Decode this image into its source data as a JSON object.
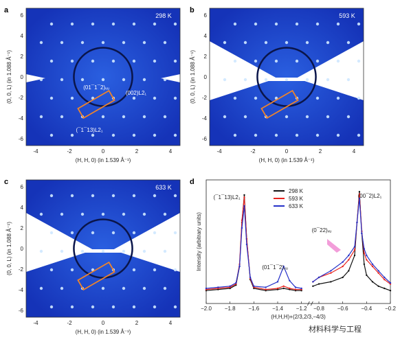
{
  "panels": [
    {
      "letter": "a",
      "temperature": "298 K",
      "xlabel": "(H, H, 0) (in 1.539 Å⁻¹)",
      "ylabel": "(0, 0, L) (in 1.088 Å⁻¹)",
      "xticks": [
        "-4",
        "-2",
        "0",
        "2",
        "4"
      ],
      "yticks": [
        "6",
        "4",
        "2",
        "0",
        "-2",
        "-4",
        "-6"
      ],
      "annotations": [
        "(01¯1¯2)ᵥᵤ",
        "(002)L2₁",
        "(¯1¯13)L2₁"
      ]
    },
    {
      "letter": "b",
      "temperature": "593 K",
      "xlabel": "(H, H, 0) (in 1.539 Å⁻¹)",
      "ylabel": "(0, 0, L) (in 1.088 Å⁻¹)",
      "xticks": [
        "-4",
        "-2",
        "0",
        "2",
        "4"
      ],
      "yticks": [
        "6",
        "4",
        "2",
        "0",
        "-2",
        "-4",
        "-6"
      ]
    },
    {
      "letter": "c",
      "temperature": "633 K",
      "xlabel": "(H, H, 0) (in 1.539 Å⁻¹)",
      "ylabel": "(0, 0, L) (in 1.088 Å⁻¹)",
      "xticks": [
        "-4",
        "-2",
        "0",
        "2",
        "4"
      ],
      "yticks": [
        "6",
        "4",
        "2",
        "0",
        "-2",
        "-4",
        "-6"
      ]
    }
  ],
  "chart_data": {
    "type": "line",
    "panel_letter": "d",
    "xlabel": "(H,H,H)+(2/3,2/3,−4/3)",
    "ylabel": "Intensity (arbitrary units)",
    "xticks": [
      "−2.0",
      "−1.8",
      "−1.6",
      "−1.4",
      "−1.2",
      "−0.8",
      "−0.6",
      "−0.4",
      "−0.2"
    ],
    "xlim": [
      -2.0,
      -0.2
    ],
    "axis_break": [
      -1.15,
      -0.85
    ],
    "log_scale_y": true,
    "legend": [
      {
        "name": "298 K",
        "color": "#111111"
      },
      {
        "name": "593 K",
        "color": "#e8231e"
      },
      {
        "name": "633 K",
        "color": "#2430c8"
      }
    ],
    "legend_position": "top-center",
    "peak_labels": [
      "(¯1¯13)L2₁",
      "(01¯1¯2)ᵥᵤ",
      "(0¯22)ᵥᵤ",
      "(00¯2)L2₁"
    ],
    "series": [
      {
        "name": "298 K",
        "x": [
          -2.0,
          -1.9,
          -1.8,
          -1.75,
          -1.72,
          -1.7,
          -1.68,
          -1.66,
          -1.63,
          -1.6,
          -1.5,
          -1.4,
          -1.35,
          -1.3,
          -1.25,
          -1.2
        ],
        "y": [
          0.08,
          0.09,
          0.1,
          0.13,
          0.3,
          0.7,
          0.95,
          0.55,
          0.18,
          0.1,
          0.08,
          0.09,
          0.1,
          0.09,
          0.08,
          0.08
        ]
      },
      {
        "name": "593 K",
        "x": [
          -2.0,
          -1.9,
          -1.8,
          -1.75,
          -1.72,
          -1.7,
          -1.68,
          -1.66,
          -1.63,
          -1.6,
          -1.5,
          -1.4,
          -1.35,
          -1.3,
          -1.25,
          -1.2
        ],
        "y": [
          0.09,
          0.1,
          0.11,
          0.14,
          0.32,
          0.72,
          0.93,
          0.55,
          0.19,
          0.11,
          0.09,
          0.1,
          0.12,
          0.1,
          0.09,
          0.09
        ]
      },
      {
        "name": "633 K",
        "x": [
          -2.0,
          -1.9,
          -1.8,
          -1.75,
          -1.72,
          -1.7,
          -1.68,
          -1.66,
          -1.63,
          -1.6,
          -1.5,
          -1.4,
          -1.35,
          -1.3,
          -1.25,
          -1.2
        ],
        "y": [
          0.1,
          0.11,
          0.12,
          0.15,
          0.3,
          0.65,
          0.85,
          0.5,
          0.2,
          0.12,
          0.11,
          0.16,
          0.3,
          0.17,
          0.11,
          0.1
        ]
      },
      {
        "name": "298 K (right)",
        "x": [
          -0.85,
          -0.8,
          -0.7,
          -0.6,
          -0.55,
          -0.5,
          -0.48,
          -0.46,
          -0.44,
          -0.42,
          -0.4,
          -0.35,
          -0.3,
          -0.25,
          -0.2
        ],
        "y": [
          0.12,
          0.14,
          0.16,
          0.2,
          0.26,
          0.4,
          0.7,
          0.98,
          0.6,
          0.32,
          0.22,
          0.16,
          0.12,
          0.1,
          0.08
        ]
      },
      {
        "name": "593 K (right)",
        "x": [
          -0.85,
          -0.8,
          -0.7,
          -0.6,
          -0.55,
          -0.5,
          -0.48,
          -0.46,
          -0.44,
          -0.42,
          -0.4,
          -0.35,
          -0.3,
          -0.25,
          -0.2
        ],
        "y": [
          0.16,
          0.2,
          0.24,
          0.3,
          0.36,
          0.45,
          0.7,
          0.96,
          0.62,
          0.42,
          0.36,
          0.3,
          0.24,
          0.18,
          0.14
        ]
      },
      {
        "name": "633 K (right)",
        "x": [
          -0.85,
          -0.8,
          -0.7,
          -0.6,
          -0.55,
          -0.5,
          -0.48,
          -0.46,
          -0.44,
          -0.42,
          -0.4,
          -0.35,
          -0.3,
          -0.25,
          -0.2
        ],
        "y": [
          0.16,
          0.2,
          0.26,
          0.34,
          0.4,
          0.48,
          0.7,
          0.92,
          0.6,
          0.46,
          0.4,
          0.32,
          0.26,
          0.2,
          0.15
        ]
      }
    ]
  },
  "watermark": "材料科学与工程"
}
